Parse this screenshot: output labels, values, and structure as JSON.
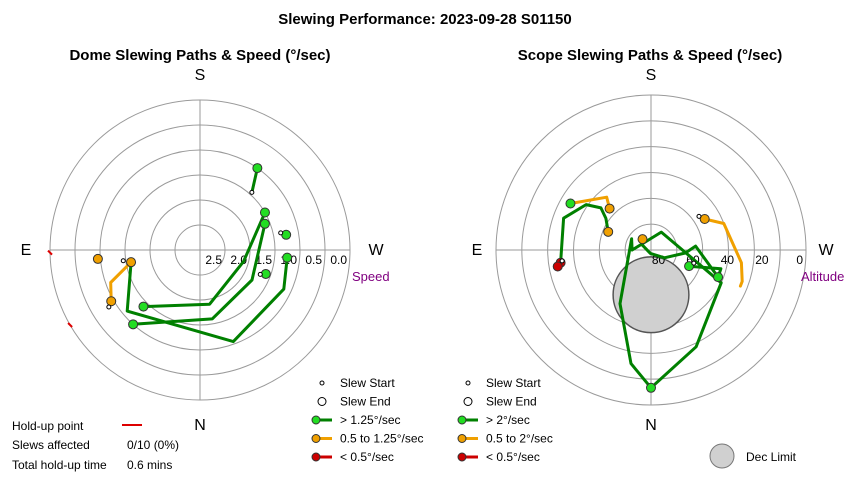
{
  "title": "Slewing Performance: 2023-09-28 S01150",
  "colors": {
    "fast": "#008000",
    "fast_fill": "#22dd22",
    "mid": "#f0a000",
    "slow": "#cc0000",
    "axis_label": "#800080",
    "dec_fill": "#d0d0d0",
    "dec_stroke": "#555555"
  },
  "chart_data": [
    {
      "type": "polar",
      "title": "Dome Slewing Paths & Speed (°/sec)",
      "compass": {
        "top": "S",
        "bottom": "N",
        "left": "E",
        "right": "W"
      },
      "radial_axis": {
        "label": "Speed",
        "ticks": [
          "2.5",
          "2.0",
          "1.5",
          "1.0",
          "0.5",
          "0.0"
        ],
        "range": [
          3.0,
          0.0
        ]
      },
      "legend": [
        {
          "key": "start",
          "label": "Slew Start"
        },
        {
          "key": "end",
          "label": "Slew End"
        },
        {
          "key": "fast",
          "label": "> 1.25°/sec"
        },
        {
          "key": "mid",
          "label": "0.5 to 1.25°/sec"
        },
        {
          "key": "slow",
          "label": "< 0.5°/sec"
        }
      ],
      "holdup_points": [
        {
          "az": 120,
          "r": 0.0
        },
        {
          "az": 91,
          "r": 0.0
        }
      ],
      "paths": [
        {
          "class": "fast",
          "points": [
            [
              300,
              1.5
            ],
            [
              255,
              2.1
            ],
            [
              190,
              1.9
            ],
            [
              135,
              1.4
            ]
          ]
        },
        {
          "class": "fast",
          "points": [
            [
              292,
              1.6
            ],
            [
              240,
              1.8
            ],
            [
              190,
              1.6
            ],
            [
              138,
              1.0
            ]
          ]
        },
        {
          "class": "fast",
          "points": [
            [
              265,
              1.25
            ],
            [
              245,
              1.15
            ],
            [
              200,
              1.05
            ],
            [
              130,
              1.1
            ],
            [
              100,
              1.6
            ]
          ]
        },
        {
          "class": "mid",
          "points": [
            [
              120,
              0.95
            ],
            [
              110,
              1.1
            ],
            [
              100,
              1.6
            ]
          ]
        },
        {
          "class": "fast",
          "points": [
            [
              325,
              1.0
            ],
            [
              318,
              1.45
            ]
          ]
        },
        {
          "class": "fast",
          "points": [
            [
              250,
              1.6
            ],
            [
              248,
              1.7
            ]
          ]
        },
        {
          "class": "fast",
          "points": [
            [
              280,
              1.25
            ],
            [
              282,
              1.35
            ]
          ]
        }
      ],
      "markers": [
        {
          "kind": "fast",
          "az": 300,
          "r": 1.5
        },
        {
          "kind": "fast",
          "az": 292,
          "r": 1.6
        },
        {
          "kind": "fast",
          "az": 265,
          "r": 1.25
        },
        {
          "kind": "fast",
          "az": 250,
          "r": 1.6
        },
        {
          "kind": "fast",
          "az": 138,
          "r": 1.0
        },
        {
          "kind": "fast",
          "az": 135,
          "r": 1.4
        },
        {
          "kind": "fast",
          "az": 325,
          "r": 1.0
        },
        {
          "kind": "fast",
          "az": 280,
          "r": 1.25
        },
        {
          "kind": "mid",
          "az": 100,
          "r": 1.6
        },
        {
          "kind": "mid",
          "az": 95,
          "r": 0.95
        },
        {
          "kind": "mid",
          "az": 120,
          "r": 0.95
        },
        {
          "kind": "start",
          "az": 318,
          "r": 1.45
        },
        {
          "kind": "start",
          "az": 248,
          "r": 1.7
        },
        {
          "kind": "start",
          "az": 282,
          "r": 1.35
        },
        {
          "kind": "start",
          "az": 122,
          "r": 0.85
        },
        {
          "kind": "start",
          "az": 98,
          "r": 1.45
        }
      ],
      "stats": {
        "holdup_label": "Hold-up point",
        "slews_affected_label": "Slews affected",
        "slews_affected_value": "0/10 (0%)",
        "total_holdup_label": "Total hold-up time",
        "total_holdup_value": "0.6 mins"
      }
    },
    {
      "type": "polar",
      "title": "Scope Slewing Paths & Speed (°/sec)",
      "compass": {
        "top": "S",
        "bottom": "N",
        "left": "E",
        "right": "W"
      },
      "radial_axis": {
        "label": "Altitude",
        "ticks": [
          "80",
          "60",
          "40",
          "20",
          "0"
        ],
        "range": [
          90,
          0
        ]
      },
      "legend": [
        {
          "key": "start",
          "label": "Slew Start"
        },
        {
          "key": "end",
          "label": "Slew End"
        },
        {
          "key": "fast",
          "label": "> 2°/sec"
        },
        {
          "key": "mid",
          "label": "0.5 to 2°/sec"
        },
        {
          "key": "slow",
          "label": "< 0.5°/sec"
        }
      ],
      "dec_limit": {
        "label": "Dec Limit",
        "az": 0,
        "alt": 64,
        "radius_alt": 22
      },
      "paths": [
        {
          "class": "fast",
          "points": [
            [
              180,
              10
            ],
            [
              205,
              28
            ],
            [
              245,
              45
            ],
            [
              330,
              78
            ],
            [
              90,
              79
            ],
            [
              60,
              77
            ],
            [
              150,
              54
            ],
            [
              170,
              23
            ],
            [
              180,
              10
            ]
          ]
        },
        {
          "class": "fast",
          "points": [
            [
              247,
              66
            ],
            [
              255,
              48
            ],
            [
              248,
              48
            ],
            [
              275,
              64
            ],
            [
              265,
              70
            ],
            [
              240,
              81
            ],
            [
              170,
              88
            ],
            [
              60,
              84
            ],
            [
              38,
              82
            ]
          ]
        },
        {
          "class": "fast",
          "points": [
            [
              98,
              37
            ],
            [
              70,
              36
            ],
            [
              55,
              44
            ],
            [
              50,
              52
            ],
            [
              55,
              58
            ],
            [
              67,
              63
            ]
          ]
        },
        {
          "class": "mid",
          "points": [
            [
              300,
              54
            ],
            [
              290,
              45
            ],
            [
              262,
              37
            ],
            [
              251,
              34
            ],
            [
              248,
              34
            ]
          ]
        },
        {
          "class": "mid",
          "points": [
            [
              45,
              56
            ],
            [
              40,
              50
            ],
            [
              60,
              36
            ]
          ]
        }
      ],
      "markers": [
        {
          "kind": "fast",
          "az": 180,
          "r": 10
        },
        {
          "kind": "fast",
          "az": 247,
          "r": 66
        },
        {
          "kind": "fast",
          "az": 248,
          "r": 48
        },
        {
          "kind": "fast",
          "az": 60,
          "r": 36
        },
        {
          "kind": "mid",
          "az": 300,
          "r": 54
        },
        {
          "kind": "mid",
          "az": 45,
          "r": 56
        },
        {
          "kind": "mid",
          "az": 38,
          "r": 82
        },
        {
          "kind": "mid",
          "az": 67,
          "r": 63
        },
        {
          "kind": "slow",
          "az": 98,
          "r": 37
        },
        {
          "kind": "slow",
          "az": 100,
          "r": 35
        },
        {
          "kind": "start",
          "az": 305,
          "r": 56
        },
        {
          "kind": "start",
          "az": 253,
          "r": 64
        },
        {
          "kind": "start",
          "az": 97,
          "r": 38
        }
      ]
    }
  ]
}
